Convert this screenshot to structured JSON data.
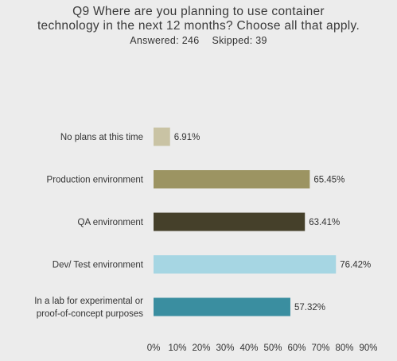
{
  "header": {
    "title_line1": "Q9 Where are you planning to use container",
    "title_line2": "technology in the next 12 months? Choose all that apply.",
    "answered": "Answered: 246",
    "skipped": "Skipped: 39"
  },
  "chart_data": {
    "type": "bar",
    "orientation": "horizontal",
    "categories": [
      "No plans at this time",
      "Production environment",
      "QA environment",
      "Dev/ Test environment",
      "In a lab for experimental or proof-of-concept purposes"
    ],
    "category_lines": [
      [
        "No plans at this time"
      ],
      [
        "Production environment"
      ],
      [
        "QA environment"
      ],
      [
        "Dev/ Test environment"
      ],
      [
        "In a lab for experimental or",
        "proof-of-concept purposes"
      ]
    ],
    "values": [
      6.91,
      65.45,
      63.41,
      76.42,
      57.32
    ],
    "value_labels": [
      "6.91%",
      "65.45%",
      "63.41%",
      "76.42%",
      "57.32%"
    ],
    "colors": [
      "#c9c3a4",
      "#9c9462",
      "#45402a",
      "#a6d6e3",
      "#3a8ea0"
    ],
    "xlim": [
      0,
      90
    ],
    "xticks": [
      0,
      10,
      20,
      30,
      40,
      50,
      60,
      70,
      80,
      90
    ],
    "xtick_labels": [
      "0%",
      "10%",
      "20%",
      "30%",
      "40%",
      "50%",
      "60%",
      "70%",
      "80%",
      "90%"
    ],
    "grid": false,
    "legend": "none"
  }
}
